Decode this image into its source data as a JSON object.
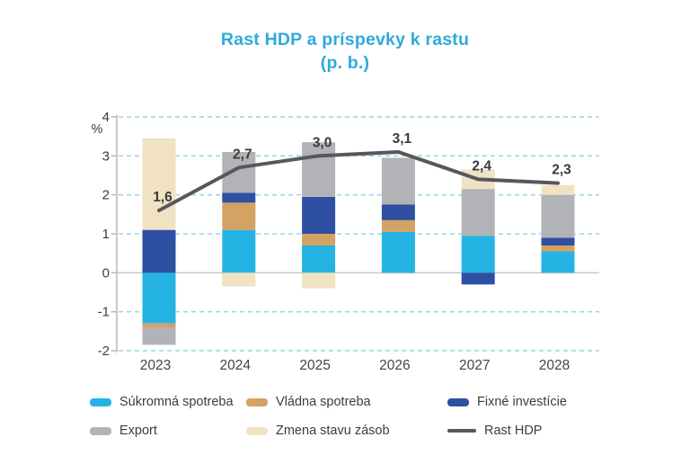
{
  "title": {
    "line1": "Rast HDP a príspevky k rastu",
    "line2": "(p. b.)"
  },
  "colors": {
    "title_blue": "#2fa9dc",
    "private_consumption": "#25b3e4",
    "government_consumption": "#d4a263",
    "fixed_investment": "#2e4fa2",
    "export": "#b2b3b6",
    "inventories": "#f0e2c3",
    "gdp_line": "#57585b",
    "gridline": "#9bd6e9",
    "zero_line": "#c8c9cb",
    "axis_line": "#b5b7ba",
    "text_dark": "#3b3c3e"
  },
  "chart_data": {
    "type": "bar",
    "subtype": "stacked-bar-with-line",
    "title": "Rast HDP a príspevky k rastu (p. b.)",
    "categories": [
      "2023",
      "2024",
      "2025",
      "2026",
      "2027",
      "2028"
    ],
    "series": [
      {
        "name": "Súkromná spotreba",
        "color": "#25b3e4",
        "values": [
          -1.3,
          1.1,
          0.7,
          1.05,
          0.95,
          0.55
        ]
      },
      {
        "name": "Vládna spotreba",
        "color": "#d4a263",
        "values": [
          -0.1,
          0.7,
          0.3,
          0.3,
          0.0,
          0.15
        ]
      },
      {
        "name": "Fixné investície",
        "color": "#2e4fa2",
        "values": [
          1.1,
          0.25,
          0.95,
          0.4,
          -0.3,
          0.2
        ]
      },
      {
        "name": "Export",
        "color": "#b2b3b6",
        "values": [
          -0.45,
          1.05,
          1.4,
          1.2,
          1.2,
          1.1
        ]
      },
      {
        "name": "Zmena stavu zásob",
        "color": "#f0e2c3",
        "values": [
          2.35,
          -0.35,
          -0.4,
          0.0,
          0.5,
          0.25
        ]
      }
    ],
    "line_series": {
      "name": "Rast HDP",
      "color": "#57585b",
      "values": [
        1.6,
        2.7,
        3.0,
        3.1,
        2.4,
        2.3
      ],
      "labels": [
        "1,6",
        "2,7",
        "3,0",
        "3,1",
        "2,4",
        "2,3"
      ]
    },
    "ylabel": "%",
    "ylim": [
      -2,
      4
    ],
    "yticks": [
      4,
      3,
      2,
      1,
      0,
      -1,
      -2
    ],
    "ytick_labels": [
      "4",
      "3",
      "2",
      "1",
      "0",
      "-1",
      "-2"
    ],
    "grid": "horizontal-dashed",
    "legend_position": "bottom"
  },
  "legend": {
    "items": [
      {
        "label": "Súkromná spotreba",
        "color": "#25b3e4",
        "type": "swatch"
      },
      {
        "label": "Vládna spotreba",
        "color": "#d4a263",
        "type": "swatch"
      },
      {
        "label": "Fixné investície",
        "color": "#2e4fa2",
        "type": "swatch"
      },
      {
        "label": "Export",
        "color": "#b2b3b6",
        "type": "swatch"
      },
      {
        "label": "Zmena stavu zásob",
        "color": "#f0e2c3",
        "type": "swatch"
      },
      {
        "label": "Rast HDP",
        "color": "#57585b",
        "type": "line"
      }
    ]
  }
}
